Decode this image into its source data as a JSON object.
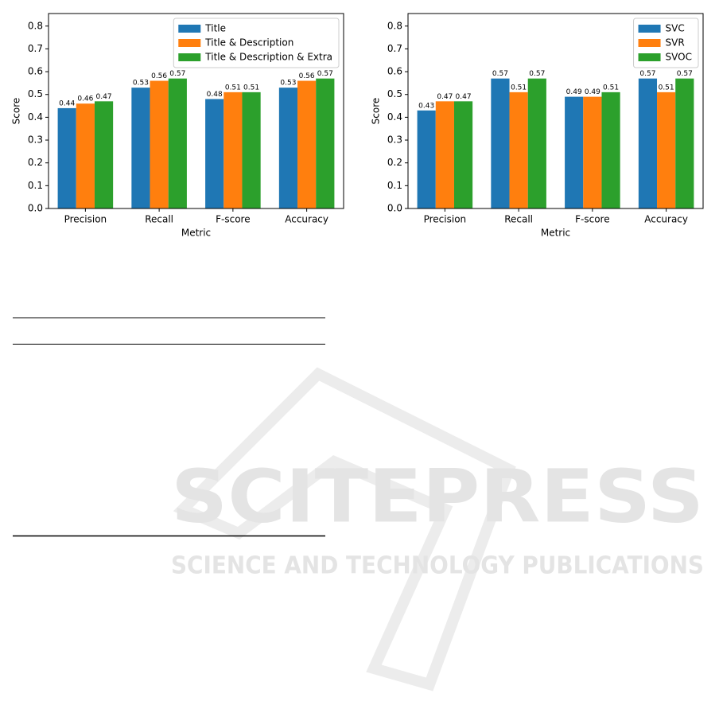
{
  "chart_data": [
    {
      "type": "bar",
      "xlabel": "Metric",
      "ylabel": "Score",
      "categories": [
        "Precision",
        "Recall",
        "F-score",
        "Accuracy"
      ],
      "series": [
        {
          "name": "Title",
          "color": "#1f77b4",
          "values": [
            0.44,
            0.53,
            0.48,
            0.53
          ]
        },
        {
          "name": "Title & Description",
          "color": "#ff7f0e",
          "values": [
            0.46,
            0.56,
            0.51,
            0.56
          ]
        },
        {
          "name": "Title & Description & Extra",
          "color": "#2ca02c",
          "values": [
            0.47,
            0.57,
            0.51,
            0.57
          ]
        }
      ],
      "ylim": [
        0,
        0.855
      ],
      "yticks": [
        {
          "value": 0,
          "label": "0.0"
        },
        0.1,
        0.2,
        0.3,
        0.4,
        0.5,
        0.6,
        0.7,
        0.8
      ],
      "legend": "upper right"
    },
    {
      "type": "bar",
      "xlabel": "Metric",
      "ylabel": "Score",
      "categories": [
        "Precision",
        "Recall",
        "F-score",
        "Accuracy"
      ],
      "series": [
        {
          "name": "SVC",
          "color": "#1f77b4",
          "values": [
            0.43,
            0.57,
            0.49,
            0.57
          ]
        },
        {
          "name": "SVR",
          "color": "#ff7f0e",
          "values": [
            0.47,
            0.51,
            0.49,
            0.51
          ]
        },
        {
          "name": "SVOC",
          "color": "#2ca02c",
          "values": [
            0.47,
            0.57,
            0.51,
            0.57
          ]
        }
      ],
      "ylim": [
        0,
        0.855
      ],
      "yticks": [
        {
          "value": 0,
          "label": "0.0"
        },
        0.1,
        0.2,
        0.3,
        0.4,
        0.5,
        0.6,
        0.7,
        0.8
      ],
      "legend": "upper right"
    }
  ],
  "watermark": {
    "title": "SCITEPRESS",
    "subtitle": "SCIENCE AND TECHNOLOGY PUBLICATIONS"
  }
}
